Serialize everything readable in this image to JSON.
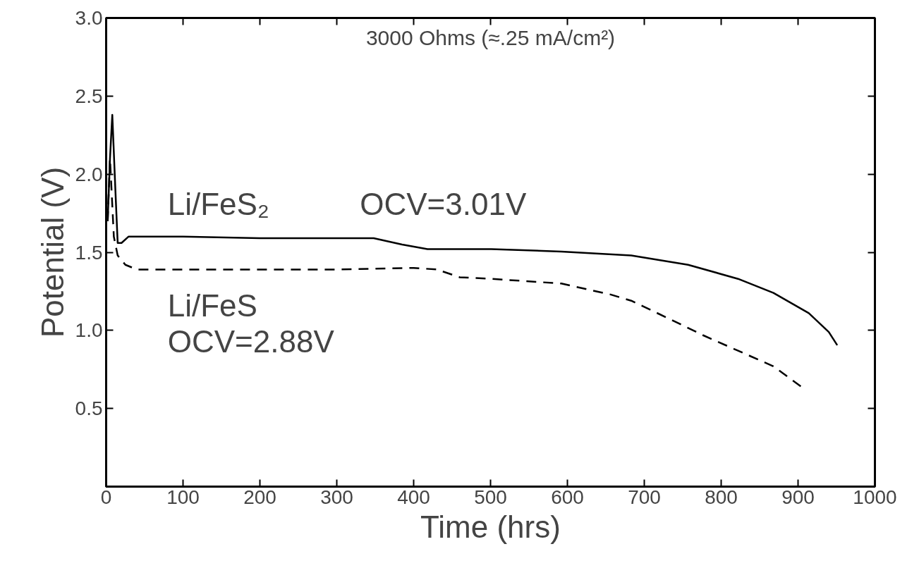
{
  "chart_data": {
    "type": "line",
    "title": "3000 Ohms (≈.25 mA/cm²)",
    "xlabel": "Time (hrs)",
    "ylabel": "Potential (V)",
    "xlim": [
      0,
      1000
    ],
    "ylim": [
      0,
      3
    ],
    "xticks": [
      0,
      100,
      200,
      300,
      400,
      500,
      600,
      700,
      800,
      900,
      1000
    ],
    "yticks": [
      {
        "value": 0.5,
        "label": "0.5"
      },
      {
        "value": 1,
        "label": "1.0"
      },
      {
        "value": 1.5,
        "label": "1.5"
      },
      {
        "value": 2,
        "label": "2.0"
      },
      {
        "value": 2.5,
        "label": "2.5"
      },
      {
        "value": 3,
        "label": "3.0"
      }
    ],
    "grid": false,
    "marker": "none",
    "annotations": [
      "OCV=3.01V",
      "OCV=2.88V"
    ],
    "series": [
      {
        "name": "Li/FeS₂",
        "color": "#000000",
        "line_style": "solid",
        "x": [
          2,
          5,
          8,
          12,
          15,
          20,
          29,
          100,
          200,
          300,
          348,
          385,
          418,
          501,
          592,
          683,
          757,
          822,
          868,
          914,
          940,
          951
        ],
        "values": [
          1.7,
          2.1,
          2.38,
          1.9,
          1.56,
          1.56,
          1.6,
          1.6,
          1.59,
          1.59,
          1.59,
          1.55,
          1.52,
          1.52,
          1.505,
          1.48,
          1.42,
          1.33,
          1.24,
          1.11,
          0.99,
          0.905
        ]
      },
      {
        "name": "Li/FeS",
        "color": "#000000",
        "line_style": "dashed",
        "x": [
          2,
          5,
          10,
          15,
          25,
          40,
          100,
          200,
          300,
          400,
          430,
          460,
          501,
          592,
          656,
          683,
          730,
          776,
          822,
          868,
          904
        ],
        "values": [
          1.7,
          2.1,
          1.6,
          1.48,
          1.42,
          1.39,
          1.39,
          1.39,
          1.39,
          1.4,
          1.39,
          1.34,
          1.33,
          1.3,
          1.23,
          1.19,
          1.08,
          0.97,
          0.87,
          0.77,
          0.64
        ]
      }
    ]
  }
}
